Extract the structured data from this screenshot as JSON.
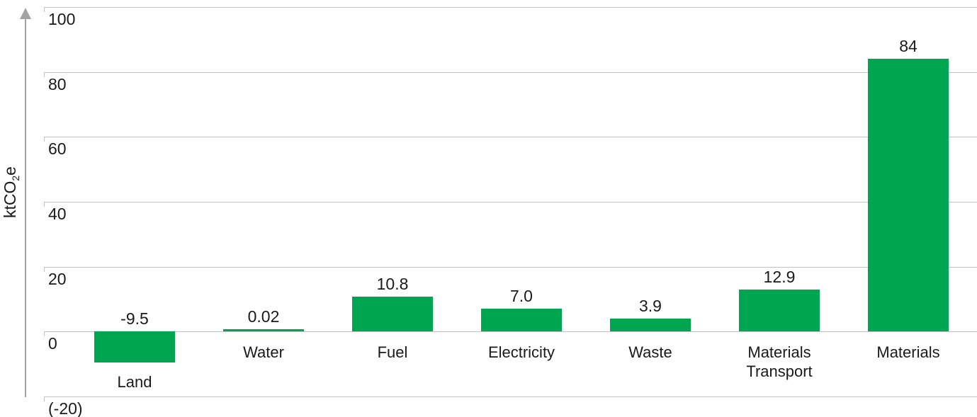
{
  "chart_data": {
    "type": "bar",
    "categories": [
      "Land",
      "Water",
      "Fuel",
      "Electricity",
      "Waste",
      "Materials Transport",
      "Materials"
    ],
    "values": [
      -9.5,
      0.02,
      10.8,
      7.0,
      3.9,
      12.9,
      84
    ],
    "value_labels": [
      "-9.5",
      "0.02",
      "10.8",
      "7.0",
      "3.9",
      "12.9",
      "84"
    ],
    "category_label_lines": [
      [
        "Land"
      ],
      [
        "Water"
      ],
      [
        "Fuel"
      ],
      [
        "Electricity"
      ],
      [
        "Waste"
      ],
      [
        "Materials",
        "Transport"
      ],
      [
        "Materials"
      ]
    ],
    "ylabel": "ktCO2e",
    "ylabel_parts": {
      "pre": "ktCO",
      "sub": "2",
      "post": "e"
    },
    "yticks": [
      100,
      80,
      60,
      40,
      20,
      0,
      -20
    ],
    "ytick_labels": [
      "100",
      "80",
      "60",
      "40",
      "20",
      "0",
      "(-20)"
    ],
    "ylim": [
      -20,
      100
    ],
    "grid": true,
    "legend": false,
    "bar_color": "#00A551",
    "gridline_color": "#C2C2C2",
    "axis_arrow_color": "#A3A3A3",
    "text_color": "#1A1A1A",
    "background_color": "#FFFFFF"
  }
}
